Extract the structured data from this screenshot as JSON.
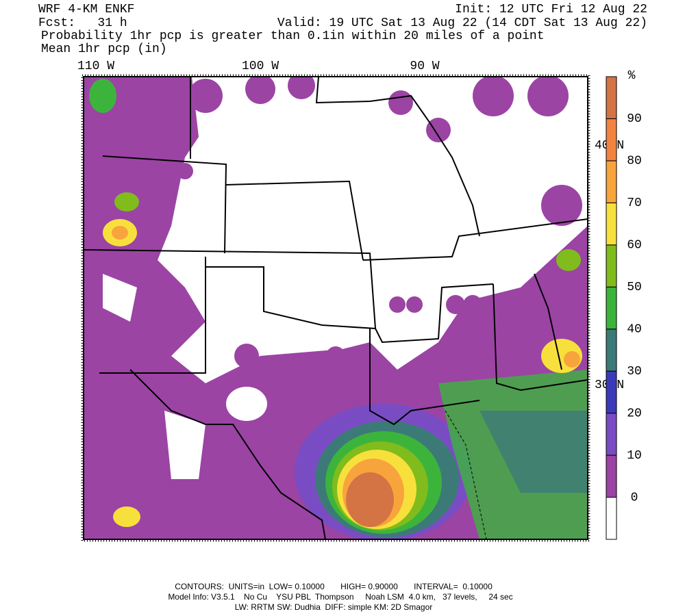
{
  "header": {
    "model": "WRF 4-KM ENKF",
    "forecast": "Fcst:   31 h",
    "init": "Init: 12 UTC Fri 12 Aug 22",
    "valid": "Valid: 19 UTC Sat 13 Aug 22 (14 CDT Sat 13 Aug 22)",
    "field": "Probability 1hr pcp is greater than 0.1in within 20 miles of a point",
    "contour_field": "Mean 1hr pcp (in)"
  },
  "map": {
    "longitude_labels": [
      "110 W",
      "100 W",
      "90 W"
    ],
    "latitude_labels": [
      "40 N",
      "30 N"
    ]
  },
  "colorbar": {
    "unit": "%",
    "levels": [
      0,
      10,
      20,
      30,
      40,
      50,
      60,
      70,
      80,
      90
    ],
    "colors": [
      "#ffffff",
      "#9b44a4",
      "#7a4cc4",
      "#3a3ab8",
      "#3c7a78",
      "#3cb43c",
      "#80bc1c",
      "#f8e03c",
      "#f8a43c",
      "#f08440",
      "#d47444"
    ]
  },
  "footer": {
    "contours": "CONTOURS:  UNITS=in  LOW= 0.10000       HIGH= 0.90000       INTERVAL=  0.10000",
    "model_info": "Model Info: V3.5.1    No Cu    YSU PBL  Thompson     Noah LSM  4.0 km,   37 levels,     24 sec",
    "physics": "LW: RRTM SW: Dudhia  DIFF: simple KM: 2D Smagor"
  }
}
